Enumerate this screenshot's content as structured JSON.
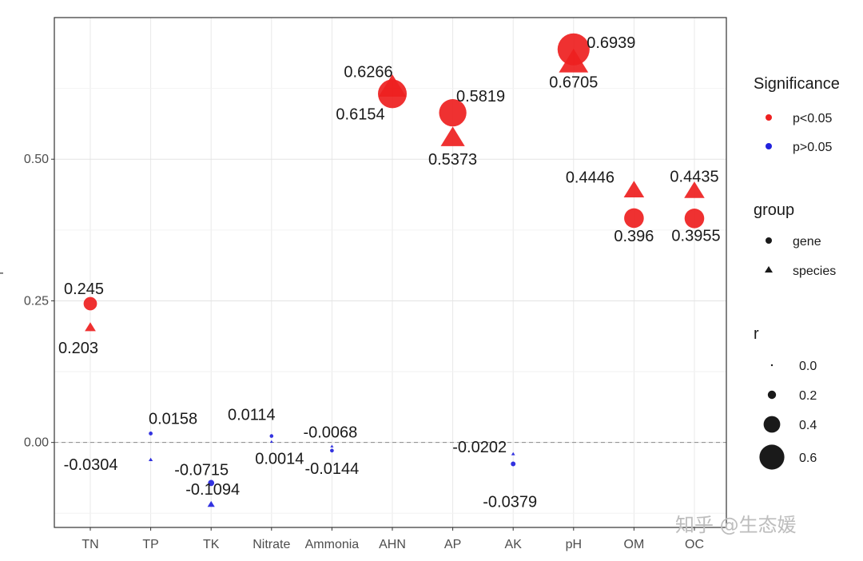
{
  "chart_data": {
    "type": "scatter",
    "title": "",
    "xlabel": "",
    "ylabel": "r",
    "categories": [
      "TN",
      "TP",
      "TK",
      "Nitrate",
      "Ammonia",
      "AHN",
      "AP",
      "AK",
      "pH",
      "OM",
      "OC"
    ],
    "ylim": [
      -0.15,
      0.75
    ],
    "yticks": [
      0.0,
      0.25,
      0.5
    ],
    "ytick_labels": [
      "0.00",
      "0.25",
      "0.50"
    ],
    "reference_line": 0,
    "series": [
      {
        "name": "gene",
        "shape": "circle",
        "values": [
          0.245,
          0.0158,
          -0.0715,
          0.0114,
          -0.0144,
          0.6154,
          0.5819,
          -0.0379,
          0.6939,
          0.396,
          0.3955
        ],
        "labels": [
          "0.245",
          "0.0158",
          "-0.0715",
          "0.0114",
          "-0.0144",
          "0.6154",
          "0.5819",
          "-0.0379",
          "0.6939",
          "0.396",
          "0.3955"
        ],
        "significant": [
          true,
          false,
          false,
          false,
          false,
          true,
          true,
          false,
          true,
          true,
          true
        ]
      },
      {
        "name": "species",
        "shape": "triangle",
        "values": [
          0.203,
          -0.0304,
          -0.1094,
          0.0014,
          -0.0068,
          0.6266,
          0.5373,
          -0.0202,
          0.6705,
          0.4446,
          0.4435
        ],
        "labels": [
          "0.203",
          "-0.0304",
          "-0.1094",
          "0.0014",
          "-0.0068",
          "0.6266",
          "0.5373",
          "-0.0202",
          "0.6705",
          "0.4446",
          "0.4435"
        ],
        "significant": [
          true,
          false,
          false,
          false,
          false,
          true,
          true,
          false,
          true,
          true,
          true
        ]
      }
    ],
    "legend": {
      "significance_title": "Significance",
      "significance_items": [
        {
          "label": "p<0.05",
          "color": "#ee2020"
        },
        {
          "label": "p>0.05",
          "color": "#2222dd"
        }
      ],
      "group_title": "group",
      "group_items": [
        {
          "label": "gene",
          "shape": "circle"
        },
        {
          "label": "species",
          "shape": "triangle"
        }
      ],
      "size_title": "r",
      "size_items": [
        {
          "label": "0.0",
          "value": 0.0
        },
        {
          "label": "0.2",
          "value": 0.2
        },
        {
          "label": "0.4",
          "value": 0.4
        },
        {
          "label": "0.6",
          "value": 0.6
        }
      ]
    }
  },
  "watermark": "知乎 @生态媛"
}
